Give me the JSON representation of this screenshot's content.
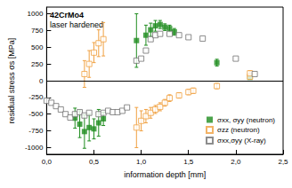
{
  "chart_data": {
    "type": "scatter",
    "annotations": [
      "42CrMo4",
      "laser hardened"
    ],
    "x_label": "information depth [mm]",
    "y_label": "residual stress σs [MPa]",
    "xlim": [
      0,
      2.5
    ],
    "xticks": [
      {
        "value": 0,
        "label": "0,0"
      },
      {
        "value": 0.5,
        "label": "0,5"
      },
      {
        "value": 1,
        "label": "1,0"
      },
      {
        "value": 1.5,
        "label": "1,5"
      },
      {
        "value": 2,
        "label": "2,0"
      },
      {
        "value": 2.5,
        "label": "2,5"
      }
    ],
    "ylim": [
      -1100,
      1100
    ],
    "yticks": [
      -1000,
      -750,
      -500,
      -250,
      0,
      250,
      500,
      750,
      1000
    ],
    "grid": false,
    "legend": "lower right",
    "series": [
      {
        "name": "σxx, σyy (neutron)",
        "color": "#1e8c1e",
        "marker": "square",
        "x": [
          0.3,
          0.35,
          0.4,
          0.45,
          0.5,
          0.55,
          0.6,
          0.95,
          1.05,
          1.1,
          1.15,
          1.2,
          1.25,
          1.3,
          1.35,
          1.8,
          2.15
        ],
        "values": [
          -560,
          -650,
          -760,
          -700,
          -720,
          -630,
          -570,
          600,
          680,
          760,
          820,
          840,
          800,
          780,
          730,
          270,
          50
        ],
        "errors": [
          150,
          200,
          250,
          200,
          150,
          200,
          100,
          400,
          150,
          100,
          80,
          60,
          50,
          50,
          50,
          50,
          30
        ]
      },
      {
        "name": "σzz (neutron)",
        "color": "#f0a040",
        "marker": "open square",
        "x": [
          0.4,
          0.45,
          0.5,
          0.55,
          0.6,
          0.95,
          1.0,
          1.05,
          1.1,
          1.15,
          1.2,
          1.25,
          1.3,
          1.4,
          1.5,
          1.55,
          1.8,
          2.15,
          2.15
        ],
        "values": [
          100,
          250,
          420,
          560,
          620,
          -700,
          -600,
          -530,
          -480,
          -430,
          -390,
          -330,
          -260,
          -220,
          -170,
          -150,
          -80,
          60,
          110
        ],
        "errors": [
          200,
          200,
          150,
          200,
          250,
          300,
          150,
          100,
          80,
          60,
          60,
          50,
          50,
          40,
          40,
          40,
          40,
          40,
          40
        ]
      },
      {
        "name": "σxx,σyy (X-ray)",
        "color": "#707070",
        "marker": "open square",
        "x": [
          0.0,
          0.05,
          0.1,
          0.15,
          0.2,
          0.25,
          0.3,
          0.35,
          0.4,
          0.45,
          0.55,
          0.6,
          0.65,
          0.7,
          0.75,
          0.8,
          0.85,
          0.95,
          1.0,
          1.05,
          1.1,
          1.15,
          1.2,
          1.3,
          1.4,
          1.5,
          1.65,
          2.0,
          2.2
        ],
        "values": [
          -300,
          -330,
          -380,
          -430,
          -500,
          -550,
          -500,
          -470,
          -520,
          -480,
          -500,
          -480,
          -450,
          -470,
          -470,
          -450,
          -400,
          300,
          330,
          450,
          620,
          680,
          700,
          700,
          680,
          650,
          630,
          330,
          100
        ]
      }
    ]
  }
}
